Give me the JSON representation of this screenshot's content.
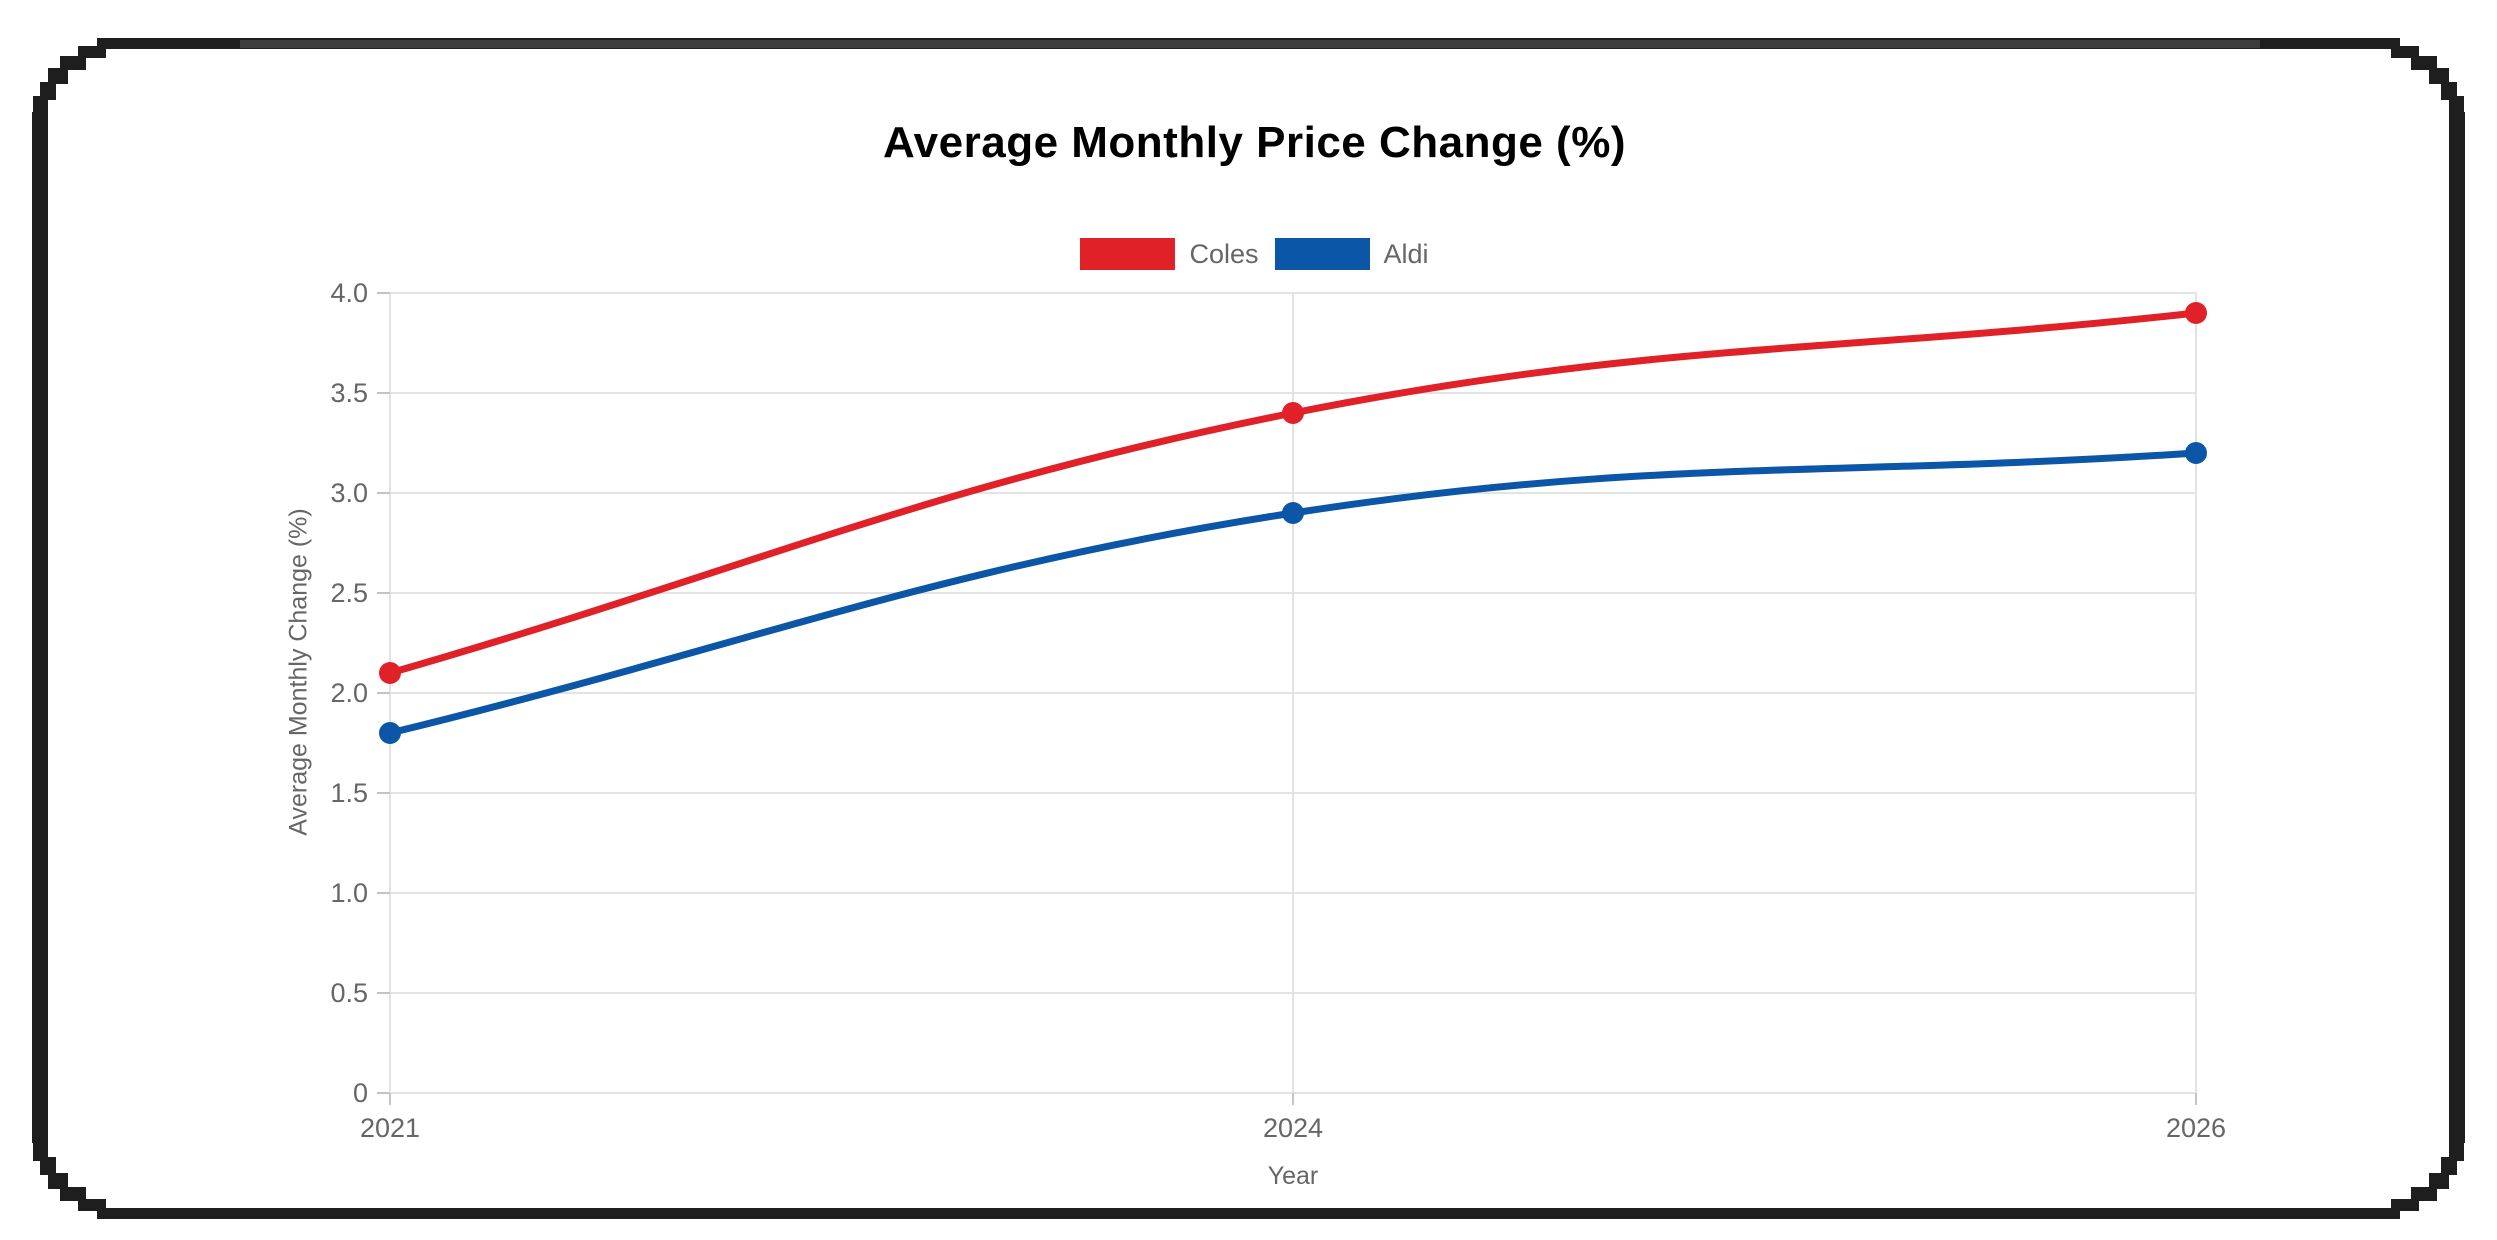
{
  "title": "Average Monthly Price Change (%)",
  "frame": {
    "color": "#1e1e1e",
    "top_bar_mid_color": "#3c3c3c"
  },
  "chart_data": {
    "type": "line",
    "title": "Average Monthly Price Change (%)",
    "xlabel": "Year",
    "ylabel": "Average Monthly Change (%)",
    "x_axis_type": "category",
    "categories": [
      "2021",
      "2024",
      "2026"
    ],
    "series": [
      {
        "name": "Coles",
        "color": "#e02128",
        "values": [
          2.1,
          3.4,
          3.9
        ]
      },
      {
        "name": "Aldi",
        "color": "#0b56a6",
        "values": [
          1.8,
          2.9,
          3.2
        ]
      }
    ],
    "ylim": [
      0,
      4.0
    ],
    "ytick_step": 0.5,
    "yticks": [
      "4.0",
      "3.5",
      "3.0",
      "2.5",
      "2.0",
      "1.5",
      "1.0",
      "0.5",
      "0"
    ],
    "xticks": [
      "2021",
      "2024",
      "2026"
    ],
    "grid": true,
    "legend_position": "top",
    "line_tension": 0.4,
    "grid_color": "#e3e3e3",
    "tick_mark_color": "#c4c4c4",
    "tick_text_color": "#666666"
  }
}
